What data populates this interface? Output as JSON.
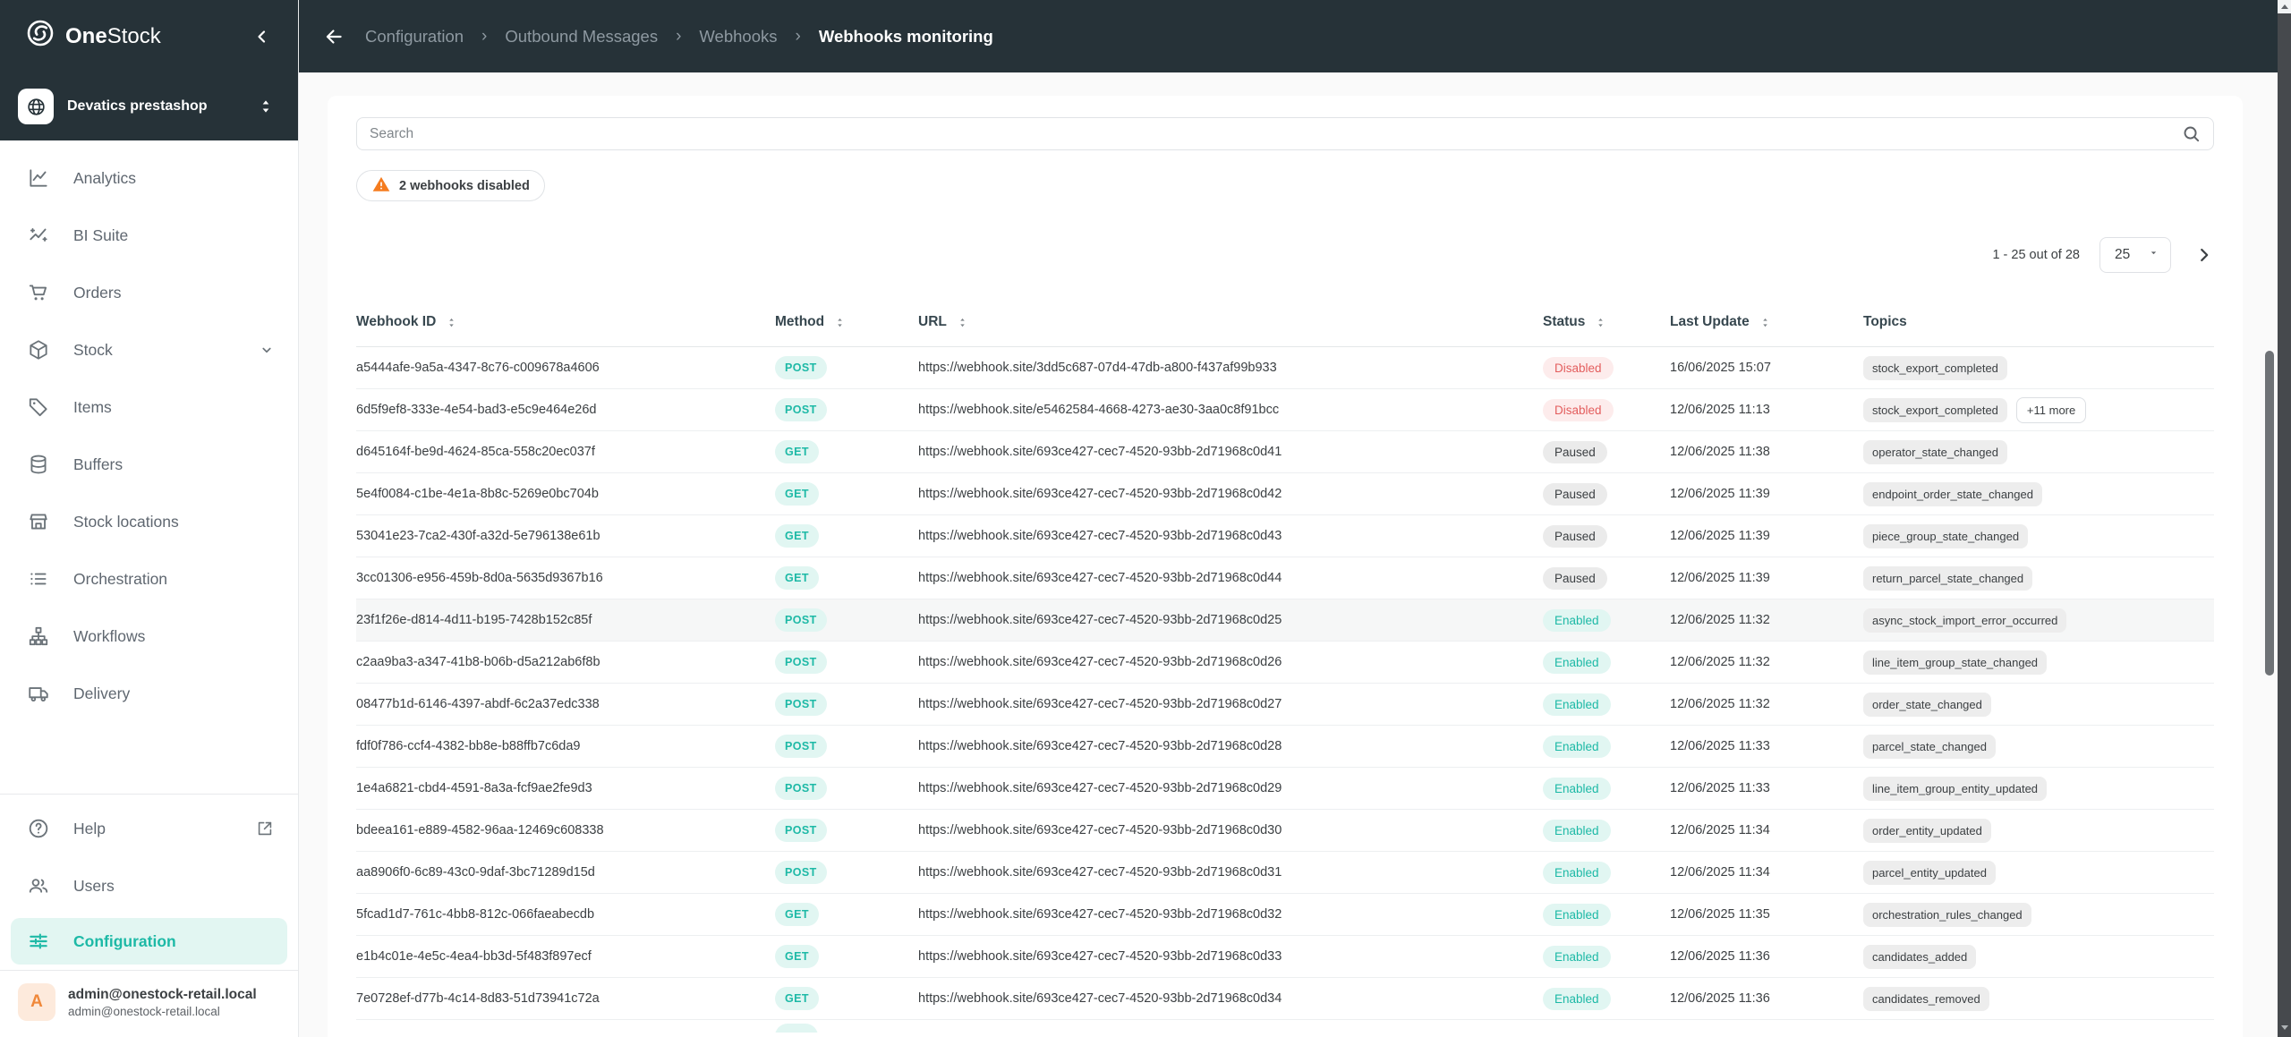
{
  "brand": {
    "bold": "One",
    "rest": "Stock"
  },
  "breadcrumb": {
    "items": [
      "Configuration",
      "Outbound Messages",
      "Webhooks"
    ],
    "separator": "›",
    "current": "Webhooks monitoring"
  },
  "org_selector": {
    "label": "Devatics prestashop",
    "icon": "globe-icon"
  },
  "sidebar": {
    "items": [
      {
        "label": "Analytics",
        "icon": "analytics-icon"
      },
      {
        "label": "BI Suite",
        "icon": "bi-suite-icon"
      },
      {
        "label": "Orders",
        "icon": "orders-icon"
      },
      {
        "label": "Stock",
        "icon": "stock-icon",
        "expandable": true
      },
      {
        "label": "Items",
        "icon": "items-icon"
      },
      {
        "label": "Buffers",
        "icon": "buffers-icon"
      },
      {
        "label": "Stock locations",
        "icon": "stock-locations-icon"
      },
      {
        "label": "Orchestration",
        "icon": "orchestration-icon"
      },
      {
        "label": "Workflows",
        "icon": "workflows-icon"
      },
      {
        "label": "Delivery",
        "icon": "delivery-icon"
      }
    ],
    "bottom_items": [
      {
        "label": "Help",
        "icon": "help-icon",
        "external": true
      },
      {
        "label": "Users",
        "icon": "users-icon"
      },
      {
        "label": "Configuration",
        "icon": "configuration-icon",
        "active": true
      }
    ],
    "profile": {
      "initial": "A",
      "name": "admin@onestock-retail.local",
      "email": "admin@onestock-retail.local"
    }
  },
  "main": {
    "search": {
      "placeholder": "Search"
    },
    "warning": {
      "label": "2 webhooks disabled"
    },
    "pagination": {
      "range": "1 - 25 out of 28",
      "page_size": "25"
    },
    "table": {
      "columns": [
        {
          "label": "Webhook ID",
          "sortable": true
        },
        {
          "label": "Method",
          "sortable": true
        },
        {
          "label": "URL",
          "sortable": true
        },
        {
          "label": "Status",
          "sortable": true
        },
        {
          "label": "Last Update",
          "sortable": true
        },
        {
          "label": "Topics",
          "sortable": false
        }
      ],
      "rows": [
        {
          "id": "a5444afe-9a5a-4347-8c76-c009678a4606",
          "method": "POST",
          "url": "https://webhook.site/3dd5c687-07d4-47db-a800-f437af99b933",
          "status": "Disabled",
          "last_update": "16/06/2025 15:07",
          "topics": [
            "stock_export_completed"
          ]
        },
        {
          "id": "6d5f9ef8-333e-4e54-bad3-e5c9e464e26d",
          "method": "POST",
          "url": "https://webhook.site/e5462584-4668-4273-ae30-3aa0c8f91bcc",
          "status": "Disabled",
          "last_update": "12/06/2025 11:13",
          "topics": [
            "stock_export_completed"
          ],
          "more": "+11 more"
        },
        {
          "id": "d645164f-be9d-4624-85ca-558c20ec037f",
          "method": "GET",
          "url": "https://webhook.site/693ce427-cec7-4520-93bb-2d71968c0d41",
          "status": "Paused",
          "last_update": "12/06/2025 11:38",
          "topics": [
            "operator_state_changed"
          ]
        },
        {
          "id": "5e4f0084-c1be-4e1a-8b8c-5269e0bc704b",
          "method": "GET",
          "url": "https://webhook.site/693ce427-cec7-4520-93bb-2d71968c0d42",
          "status": "Paused",
          "last_update": "12/06/2025 11:39",
          "topics": [
            "endpoint_order_state_changed"
          ]
        },
        {
          "id": "53041e23-7ca2-430f-a32d-5e796138e61b",
          "method": "GET",
          "url": "https://webhook.site/693ce427-cec7-4520-93bb-2d71968c0d43",
          "status": "Paused",
          "last_update": "12/06/2025 11:39",
          "topics": [
            "piece_group_state_changed"
          ]
        },
        {
          "id": "3cc01306-e956-459b-8d0a-5635d9367b16",
          "method": "GET",
          "url": "https://webhook.site/693ce427-cec7-4520-93bb-2d71968c0d44",
          "status": "Paused",
          "last_update": "12/06/2025 11:39",
          "topics": [
            "return_parcel_state_changed"
          ]
        },
        {
          "id": "23f1f26e-d814-4d11-b195-7428b152c85f",
          "method": "POST",
          "url": "https://webhook.site/693ce427-cec7-4520-93bb-2d71968c0d25",
          "status": "Enabled",
          "last_update": "12/06/2025 11:32",
          "topics": [
            "async_stock_import_error_occurred"
          ],
          "highlight": true
        },
        {
          "id": "c2aa9ba3-a347-41b8-b06b-d5a212ab6f8b",
          "method": "POST",
          "url": "https://webhook.site/693ce427-cec7-4520-93bb-2d71968c0d26",
          "status": "Enabled",
          "last_update": "12/06/2025 11:32",
          "topics": [
            "line_item_group_state_changed"
          ]
        },
        {
          "id": "08477b1d-6146-4397-abdf-6c2a37edc338",
          "method": "POST",
          "url": "https://webhook.site/693ce427-cec7-4520-93bb-2d71968c0d27",
          "status": "Enabled",
          "last_update": "12/06/2025 11:32",
          "topics": [
            "order_state_changed"
          ]
        },
        {
          "id": "fdf0f786-ccf4-4382-bb8e-b88ffb7c6da9",
          "method": "POST",
          "url": "https://webhook.site/693ce427-cec7-4520-93bb-2d71968c0d28",
          "status": "Enabled",
          "last_update": "12/06/2025 11:33",
          "topics": [
            "parcel_state_changed"
          ]
        },
        {
          "id": "1e4a6821-cbd4-4591-8a3a-fcf9ae2fe9d3",
          "method": "POST",
          "url": "https://webhook.site/693ce427-cec7-4520-93bb-2d71968c0d29",
          "status": "Enabled",
          "last_update": "12/06/2025 11:33",
          "topics": [
            "line_item_group_entity_updated"
          ]
        },
        {
          "id": "bdeea161-e889-4582-96aa-12469c608338",
          "method": "POST",
          "url": "https://webhook.site/693ce427-cec7-4520-93bb-2d71968c0d30",
          "status": "Enabled",
          "last_update": "12/06/2025 11:34",
          "topics": [
            "order_entity_updated"
          ]
        },
        {
          "id": "aa8906f0-6c89-43c0-9daf-3bc71289d15d",
          "method": "POST",
          "url": "https://webhook.site/693ce427-cec7-4520-93bb-2d71968c0d31",
          "status": "Enabled",
          "last_update": "12/06/2025 11:34",
          "topics": [
            "parcel_entity_updated"
          ]
        },
        {
          "id": "5fcad1d7-761c-4bb8-812c-066faeabecdb",
          "method": "GET",
          "url": "https://webhook.site/693ce427-cec7-4520-93bb-2d71968c0d32",
          "status": "Enabled",
          "last_update": "12/06/2025 11:35",
          "topics": [
            "orchestration_rules_changed"
          ]
        },
        {
          "id": "e1b4c01e-4e5c-4ea4-bb3d-5f483f897ecf",
          "method": "GET",
          "url": "https://webhook.site/693ce427-cec7-4520-93bb-2d71968c0d33",
          "status": "Enabled",
          "last_update": "12/06/2025 11:36",
          "topics": [
            "candidates_added"
          ]
        },
        {
          "id": "7e0728ef-d77b-4c14-8d83-51d73941c72a",
          "method": "GET",
          "url": "https://webhook.site/693ce427-cec7-4520-93bb-2d71968c0d34",
          "status": "Enabled",
          "last_update": "12/06/2025 11:36",
          "topics": [
            "candidates_removed"
          ]
        }
      ],
      "partial_row_visible": true
    }
  },
  "colors": {
    "topbar": "#263238",
    "accent": "#1db9a6",
    "accent_bg": "#e1f6f2",
    "disabled_text": "#e35d5d",
    "disabled_bg": "#fdecec",
    "paused_bg": "#ebebeb",
    "warning": "#f57c1f",
    "avatar_text": "#f0883a",
    "avatar_bg": "#fdeadc"
  }
}
